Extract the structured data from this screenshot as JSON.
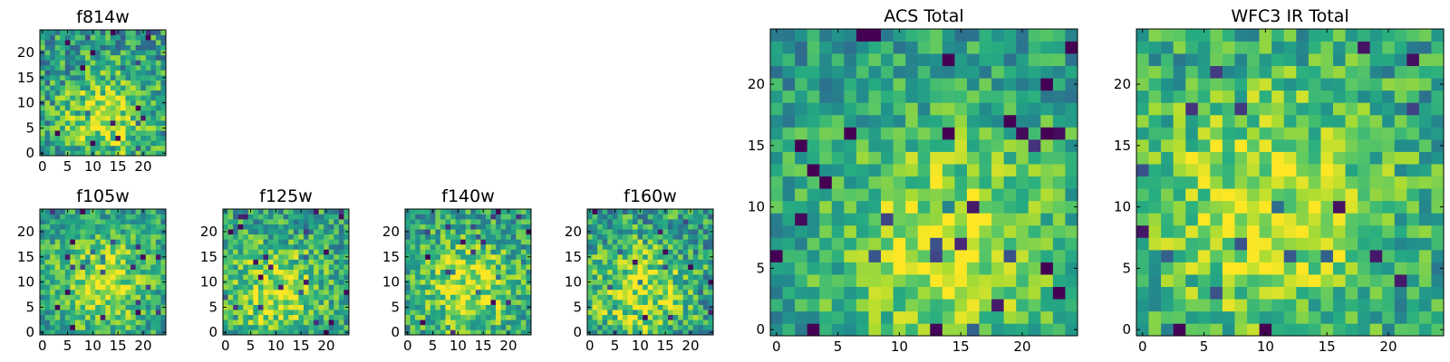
{
  "figure": {
    "colormap": "viridis"
  },
  "chart_data": [
    {
      "id": "f814w",
      "type": "heatmap",
      "title": "f814w",
      "grid": false,
      "size": 25,
      "xticks": [
        0,
        5,
        10,
        15,
        20
      ],
      "yticks": [
        0,
        5,
        10,
        15,
        20
      ],
      "xlim": [
        -0.5,
        24.5
      ],
      "ylim": [
        -0.5,
        24.5
      ],
      "seed": 11,
      "noise": 0.55,
      "blob": [
        13,
        7,
        6
      ]
    },
    {
      "id": "f105w",
      "type": "heatmap",
      "title": "f105w",
      "grid": false,
      "size": 25,
      "xticks": [
        0,
        5,
        10,
        15,
        20
      ],
      "yticks": [
        0,
        5,
        10,
        15,
        20
      ],
      "xlim": [
        -0.5,
        24.5
      ],
      "ylim": [
        -0.5,
        24.5
      ],
      "seed": 23,
      "noise": 0.45,
      "blob": [
        12,
        10,
        7
      ]
    },
    {
      "id": "f125w",
      "type": "heatmap",
      "title": "f125w",
      "grid": false,
      "size": 25,
      "xticks": [
        0,
        5,
        10,
        15,
        20
      ],
      "yticks": [
        0,
        5,
        10,
        15,
        20
      ],
      "xlim": [
        -0.5,
        24.5
      ],
      "ylim": [
        -0.5,
        24.5
      ],
      "seed": 37,
      "noise": 0.5,
      "blob": [
        10,
        8,
        7
      ]
    },
    {
      "id": "f140w",
      "type": "heatmap",
      "title": "f140w",
      "grid": false,
      "size": 25,
      "xticks": [
        0,
        5,
        10,
        15,
        20
      ],
      "yticks": [
        0,
        5,
        10,
        15,
        20
      ],
      "xlim": [
        -0.5,
        24.5
      ],
      "ylim": [
        -0.5,
        24.5
      ],
      "seed": 41,
      "noise": 0.5,
      "blob": [
        12,
        9,
        7
      ]
    },
    {
      "id": "f160w",
      "type": "heatmap",
      "title": "f160w",
      "grid": false,
      "size": 25,
      "xticks": [
        0,
        5,
        10,
        15,
        20
      ],
      "yticks": [
        0,
        5,
        10,
        15,
        20
      ],
      "xlim": [
        -0.5,
        24.5
      ],
      "ylim": [
        -0.5,
        24.5
      ],
      "seed": 53,
      "noise": 0.55,
      "blob": [
        10,
        8,
        7
      ]
    },
    {
      "id": "acs-total",
      "type": "heatmap",
      "title": "ACS Total",
      "grid": false,
      "size": 25,
      "xticks": [
        0,
        5,
        10,
        15,
        20
      ],
      "yticks": [
        0,
        5,
        10,
        15,
        20
      ],
      "xlim": [
        -0.5,
        24.5
      ],
      "ylim": [
        -0.5,
        24.5
      ],
      "seed": 67,
      "noise": 0.4,
      "blob": [
        14,
        7,
        7
      ]
    },
    {
      "id": "wfc3-ir-total",
      "type": "heatmap",
      "title": "WFC3 IR Total",
      "grid": false,
      "size": 25,
      "xticks": [
        0,
        5,
        10,
        15,
        20
      ],
      "yticks": [
        0,
        5,
        10,
        15,
        20
      ],
      "xlim": [
        -0.5,
        24.5
      ],
      "ylim": [
        -0.5,
        24.5
      ],
      "seed": 79,
      "noise": 0.45,
      "blob": [
        10,
        10,
        8
      ]
    }
  ]
}
